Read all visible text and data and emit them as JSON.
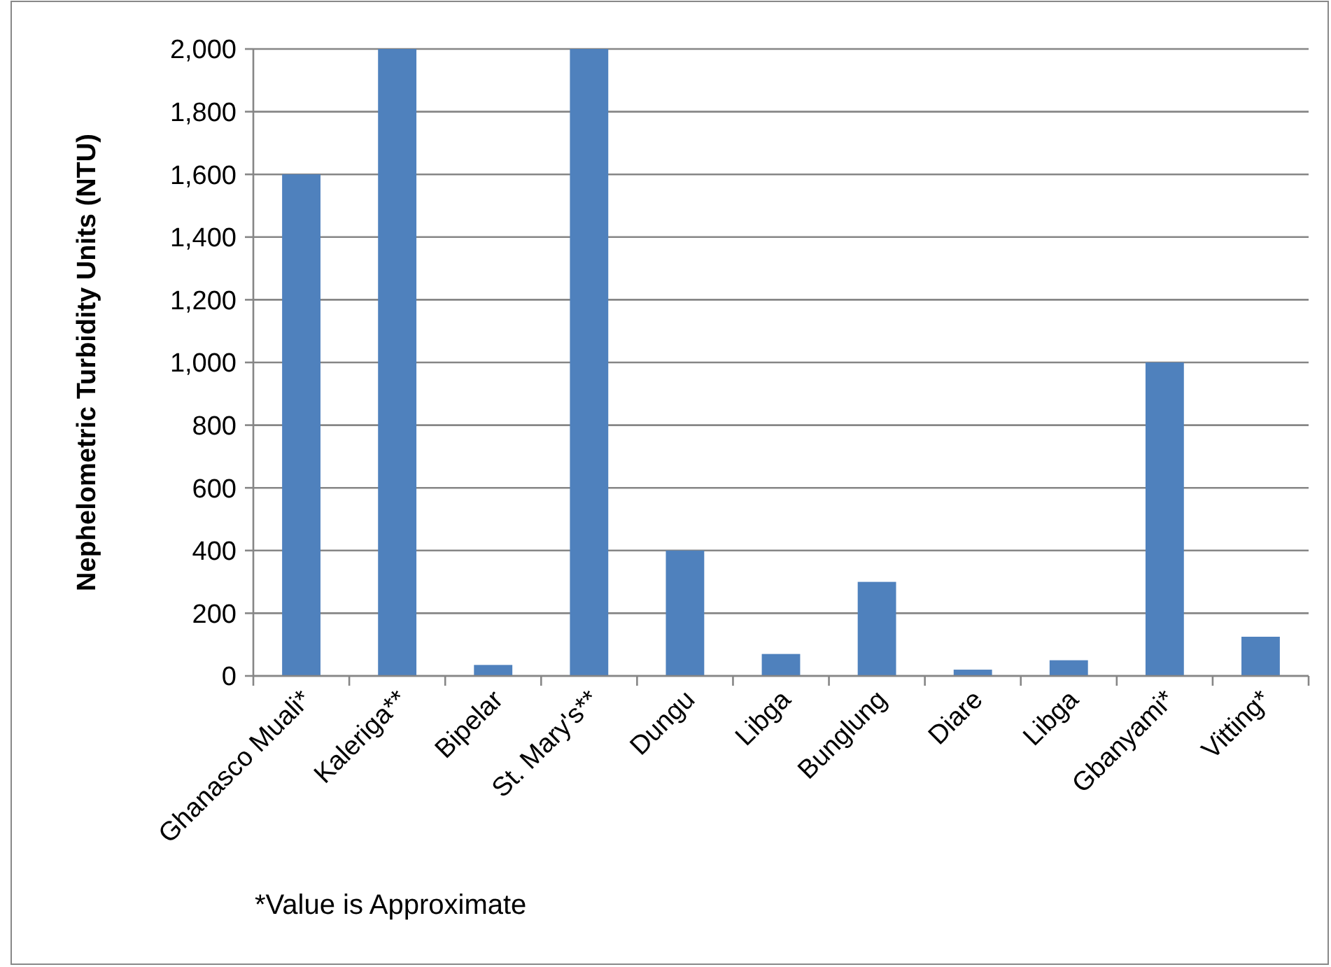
{
  "chart_data": {
    "type": "bar",
    "ylabel": "Nephelometric Turbidity Units (NTU)",
    "categories": [
      "Ghanasco Muali*",
      "Kaleriga**",
      "Bipelar",
      "St. Mary's**",
      "Dungu",
      "Libga",
      "Bunglung",
      "Diare",
      "Libga",
      "Gbanyami*",
      "Vitting*"
    ],
    "values": [
      1600,
      2000,
      35,
      2000,
      400,
      70,
      300,
      20,
      50,
      1000,
      125
    ],
    "color": "#4f81bd",
    "ylim": [
      0,
      2000
    ],
    "yticks": [
      {
        "value": 0,
        "label": "0"
      },
      {
        "value": 200,
        "label": "200"
      },
      {
        "value": 400,
        "label": "400"
      },
      {
        "value": 600,
        "label": "600"
      },
      {
        "value": 800,
        "label": "800"
      },
      {
        "value": 1000,
        "label": "1,000"
      },
      {
        "value": 1200,
        "label": "1,200"
      },
      {
        "value": 1400,
        "label": "1,400"
      },
      {
        "value": 1600,
        "label": "1,600"
      },
      {
        "value": 1800,
        "label": "1,800"
      },
      {
        "value": 2000,
        "label": "2,000"
      }
    ],
    "grid": "y",
    "annotations": [
      "*Value is Approximate"
    ]
  }
}
